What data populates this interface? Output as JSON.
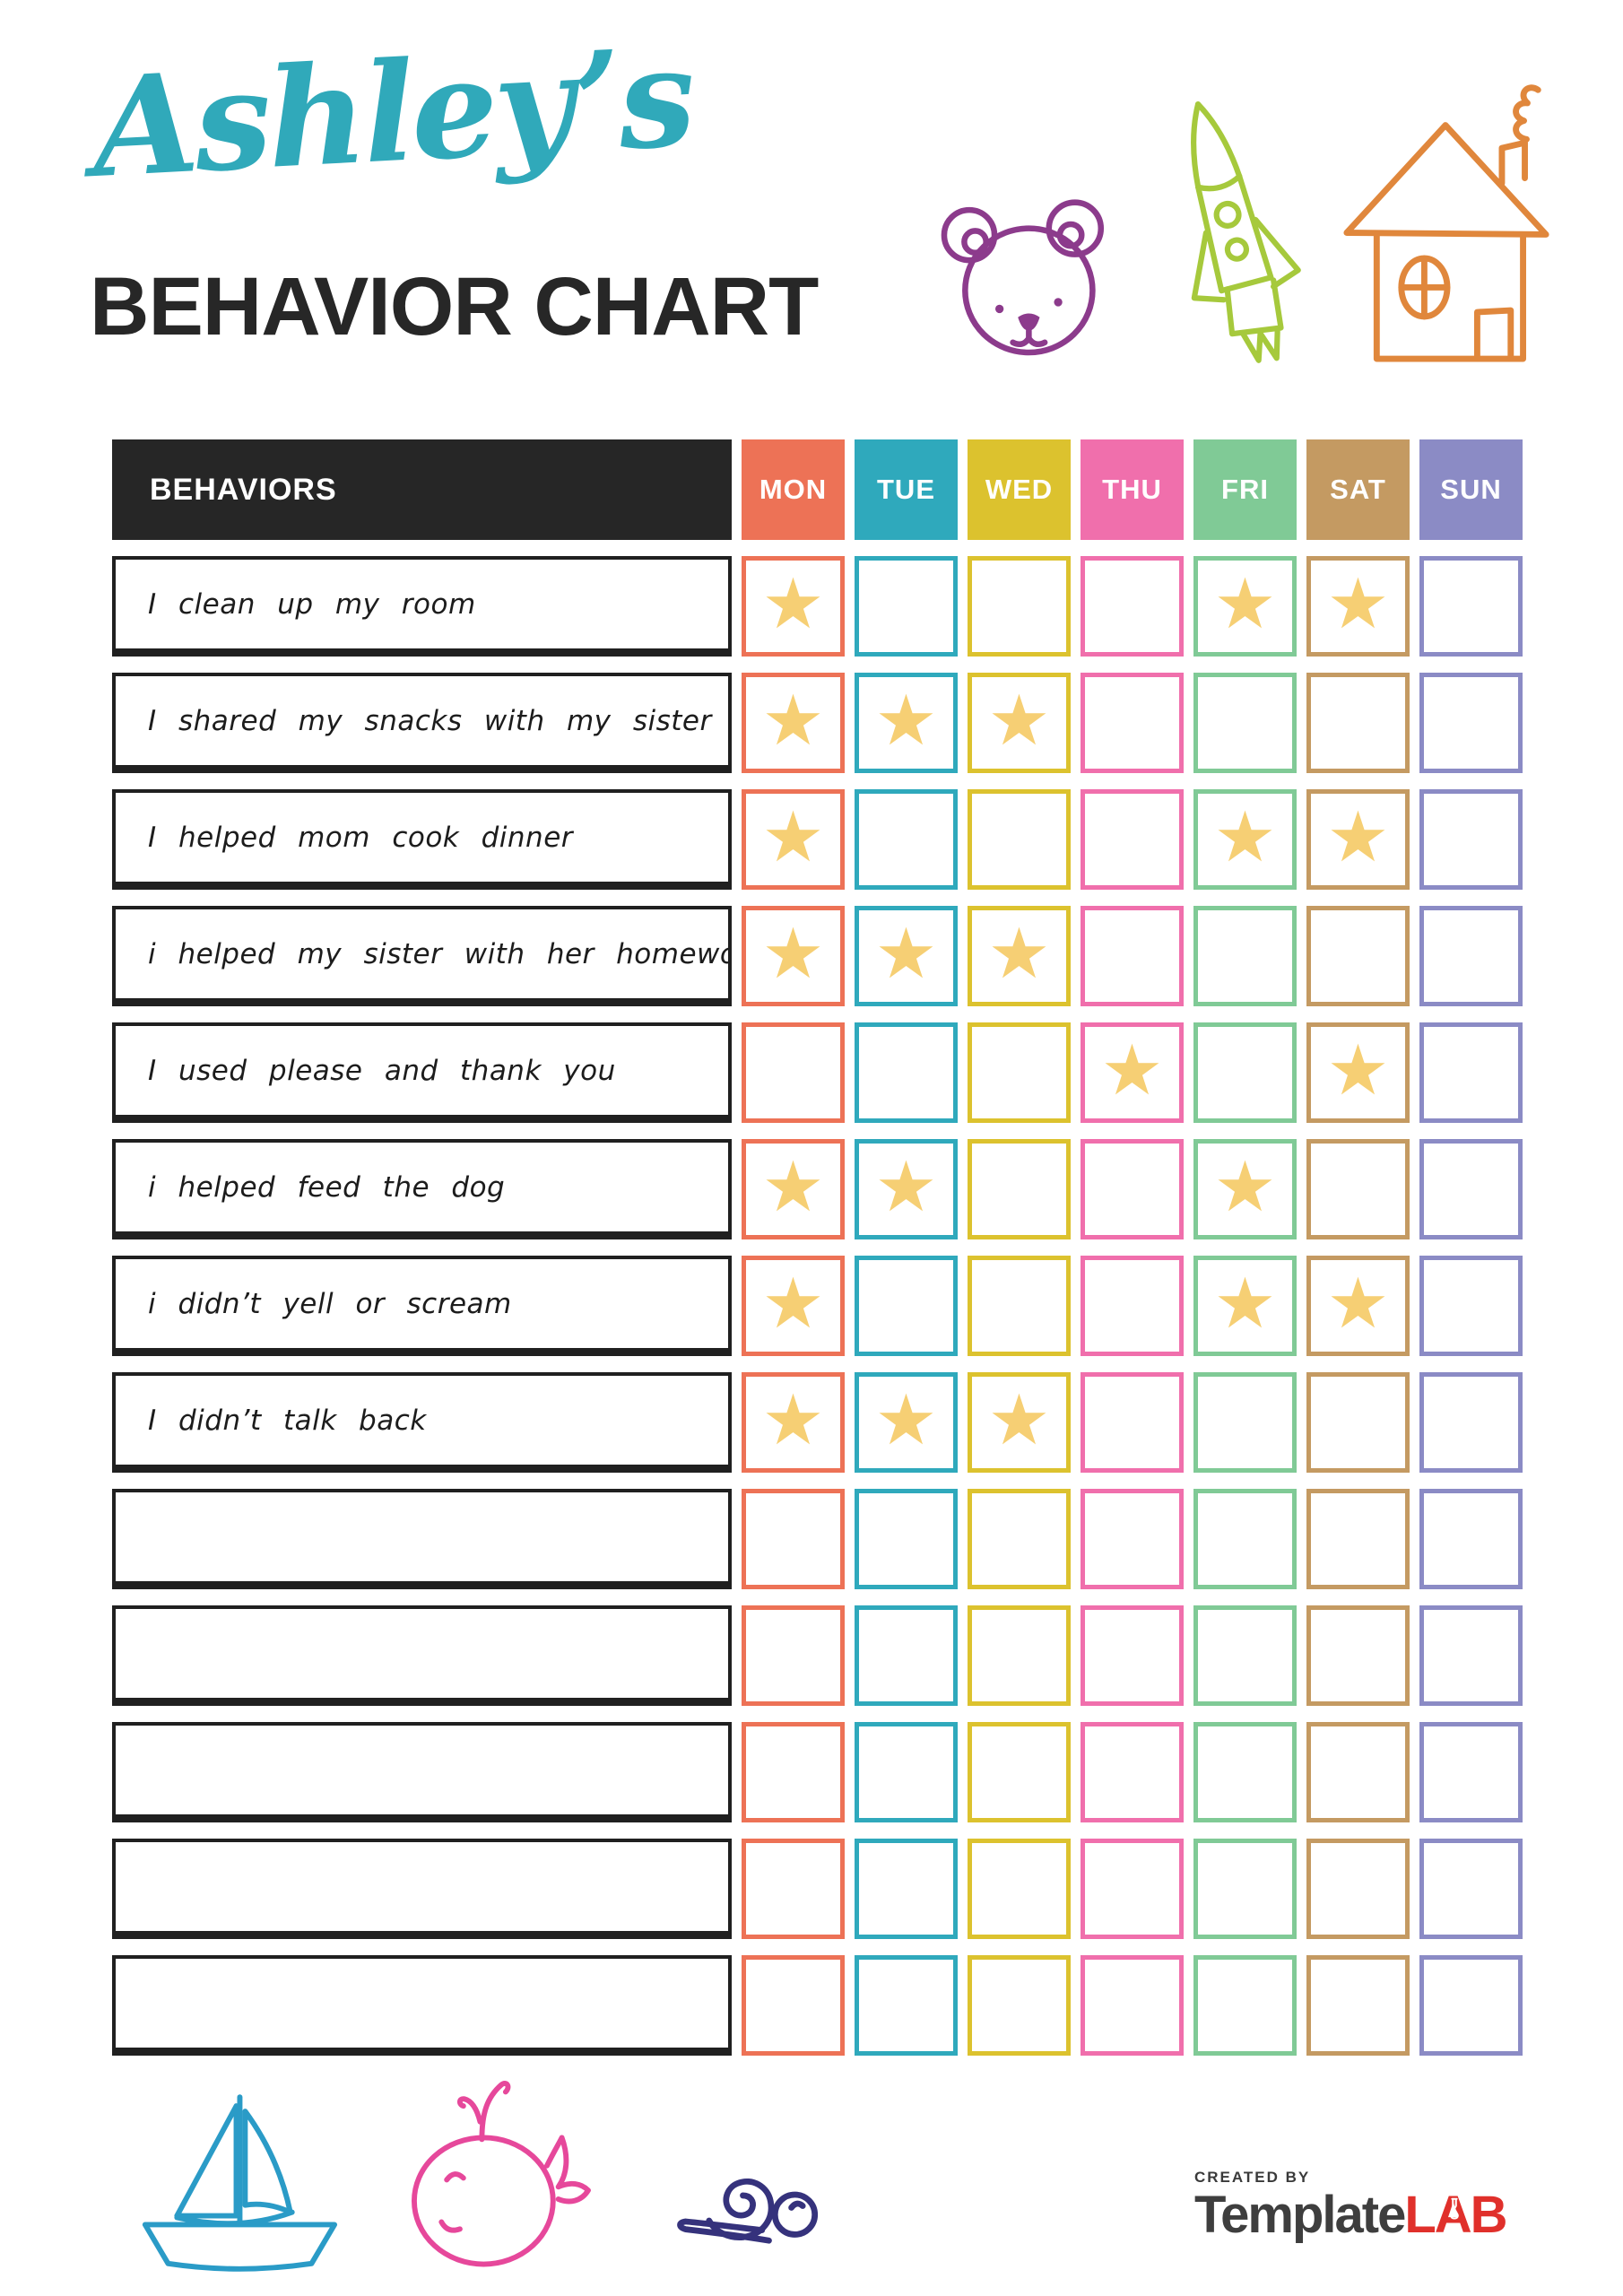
{
  "header": {
    "name_script": "Ashley’s",
    "name_color": "#30A9BA",
    "title": "BEHAVIOR CHART",
    "doodles": [
      {
        "name": "teddy-bear",
        "color": "#8C3B8C"
      },
      {
        "name": "rocket",
        "color": "#A6C93C"
      },
      {
        "name": "house",
        "color": "#E0873C"
      }
    ]
  },
  "table": {
    "behaviors_header": "BEHAVIORS",
    "header_bg": "#262626",
    "star_glyph": "★",
    "star_color": "#F6CF74",
    "days": [
      {
        "label": "MON",
        "color": "#ED7256"
      },
      {
        "label": "TUE",
        "color": "#2FA9BC"
      },
      {
        "label": "WED",
        "color": "#DCC22E"
      },
      {
        "label": "THU",
        "color": "#F06FAC"
      },
      {
        "label": "FRI",
        "color": "#80CA96"
      },
      {
        "label": "SAT",
        "color": "#C49A62"
      },
      {
        "label": "SUN",
        "color": "#8B8BC5"
      }
    ],
    "rows": [
      {
        "behavior": "I clean up my room",
        "stars": [
          "MON",
          "FRI",
          "SAT"
        ]
      },
      {
        "behavior": "I shared my snacks with my sister",
        "stars": [
          "MON",
          "TUE",
          "WED"
        ]
      },
      {
        "behavior": "I helped mom cook dinner",
        "stars": [
          "MON",
          "FRI",
          "SAT"
        ]
      },
      {
        "behavior": "i helped my sister with her homework",
        "stars": [
          "MON",
          "TUE",
          "WED"
        ]
      },
      {
        "behavior": "I used please and thank you",
        "stars": [
          "THU",
          "SAT"
        ]
      },
      {
        "behavior": "i helped feed the dog",
        "stars": [
          "MON",
          "TUE",
          "FRI"
        ]
      },
      {
        "behavior": "i didn’t yell or scream",
        "stars": [
          "MON",
          "FRI",
          "SAT"
        ]
      },
      {
        "behavior": "I didn’t talk back",
        "stars": [
          "MON",
          "TUE",
          "WED"
        ]
      },
      {
        "behavior": "",
        "stars": []
      },
      {
        "behavior": "",
        "stars": []
      },
      {
        "behavior": "",
        "stars": []
      },
      {
        "behavior": "",
        "stars": []
      },
      {
        "behavior": "",
        "stars": []
      }
    ]
  },
  "footer": {
    "doodles": [
      {
        "name": "sailboat",
        "color": "#2A9BC7"
      },
      {
        "name": "whale",
        "color": "#E6489B"
      },
      {
        "name": "snail",
        "color": "#35327C"
      }
    ],
    "credit_prefix": "CREATED BY",
    "brand_part1": "Template",
    "brand_part2": "LAB",
    "brand_color1": "#3E3E3E",
    "brand_color2": "#E0302B"
  }
}
